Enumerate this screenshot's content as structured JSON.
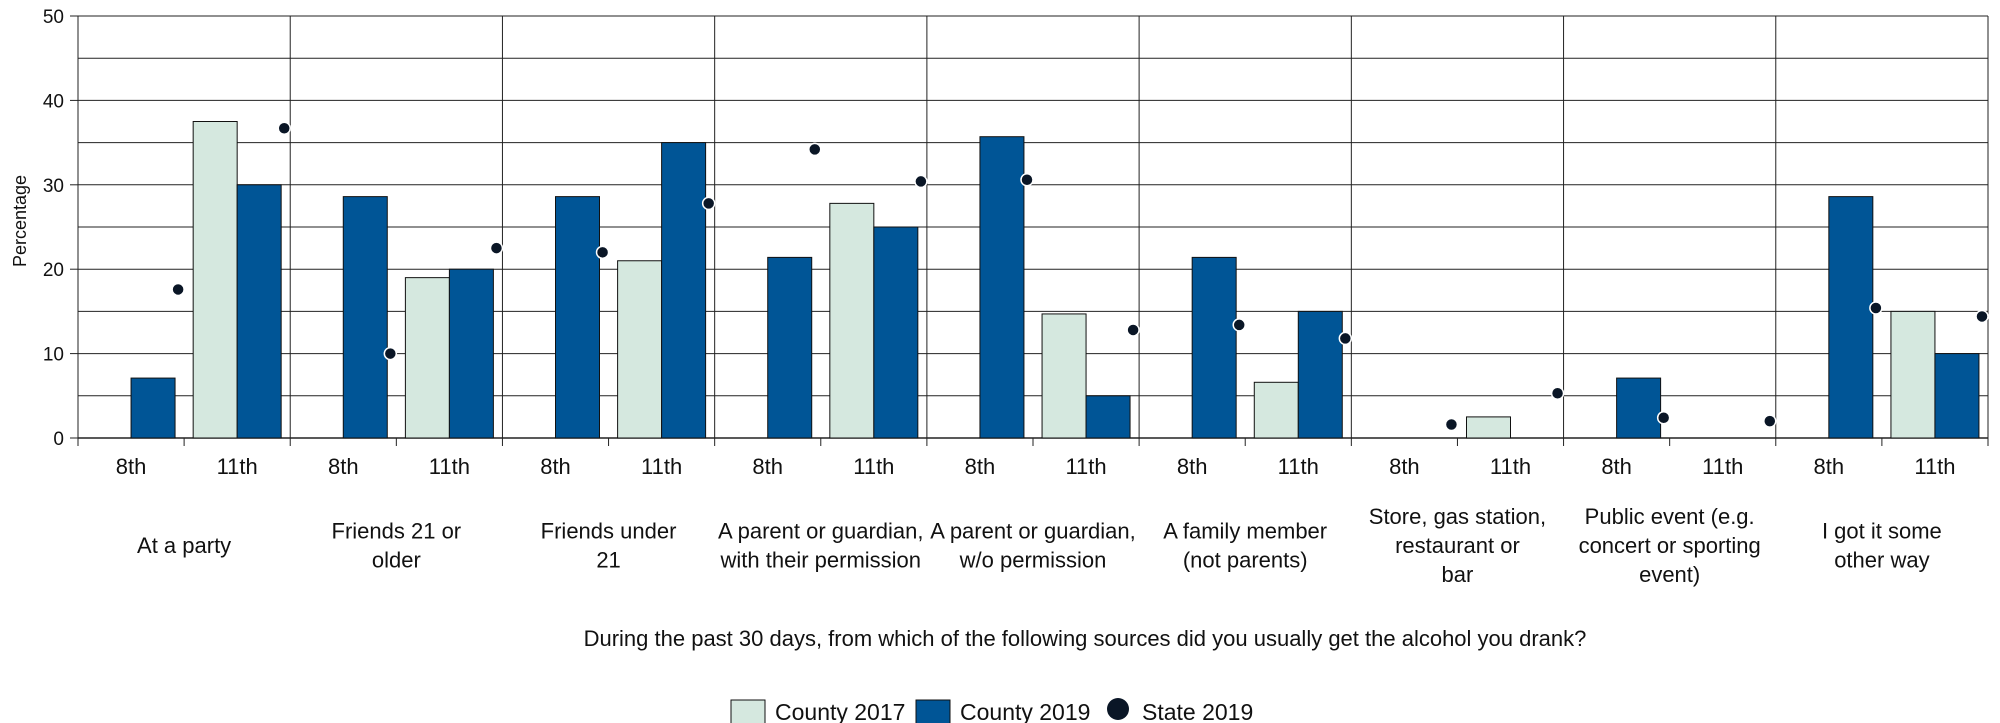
{
  "chart_data": {
    "type": "bar",
    "ylabel": "Percentage",
    "xlabel": "During the past 30 days, from which of the following sources did you usually get the alcohol you drank?",
    "ylim": [
      0,
      50
    ],
    "yticks": [
      0,
      10,
      20,
      30,
      40,
      50
    ],
    "grid": true,
    "legend_position": "bottom",
    "groups": [
      "At a party",
      "Friends 21 or older",
      "Friends under 21",
      "A parent or guardian, with their permission",
      "A parent or guardian, w/o permission",
      "A family member (not parents)",
      "Store, gas station, restaurant or bar",
      "Public event (e.g. concert or sporting event)",
      "I got it some other way"
    ],
    "group_label_lines": [
      [
        "At a party"
      ],
      [
        "Friends 21 or",
        "older"
      ],
      [
        "Friends under",
        "21"
      ],
      [
        "A parent or guardian,",
        "with their permission"
      ],
      [
        "A parent or guardian,",
        "w/o permission"
      ],
      [
        "A family member",
        "(not parents)"
      ],
      [
        "Store, gas station,",
        "restaurant or",
        "bar"
      ],
      [
        "Public event (e.g.",
        "concert or sporting",
        "event)"
      ],
      [
        "I got it some",
        "other way"
      ]
    ],
    "subcategories": [
      "8th",
      "11th"
    ],
    "series": [
      {
        "name": "County 2017",
        "color": "#d5e8df",
        "kind": "bar",
        "values": [
          [
            0,
            37.5
          ],
          [
            0,
            19.0
          ],
          [
            0,
            21.0
          ],
          [
            0,
            27.8
          ],
          [
            0,
            14.7
          ],
          [
            0,
            6.6
          ],
          [
            0,
            2.5
          ],
          [
            0,
            0
          ],
          [
            0,
            15.0
          ]
        ]
      },
      {
        "name": "County 2019",
        "color": "#005596",
        "kind": "bar",
        "values": [
          [
            7.1,
            30.0
          ],
          [
            28.6,
            20.0
          ],
          [
            28.6,
            35.0
          ],
          [
            21.4,
            25.0
          ],
          [
            35.7,
            5.0
          ],
          [
            21.4,
            15.0
          ],
          [
            0,
            0
          ],
          [
            7.1,
            0
          ],
          [
            28.6,
            10.0
          ]
        ]
      },
      {
        "name": "State 2019",
        "color": "#0a1626",
        "kind": "point",
        "values": [
          [
            17.6,
            36.7
          ],
          [
            10.0,
            22.5
          ],
          [
            22.0,
            27.8
          ],
          [
            34.2,
            30.4
          ],
          [
            30.6,
            12.8
          ],
          [
            13.4,
            11.8
          ],
          [
            1.6,
            5.3
          ],
          [
            2.4,
            2.0
          ],
          [
            15.4,
            14.4
          ]
        ]
      }
    ]
  }
}
